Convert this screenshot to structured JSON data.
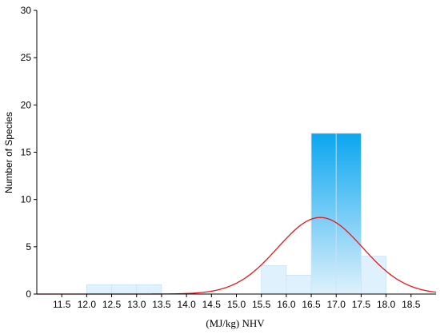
{
  "chart_data": {
    "type": "bar",
    "subtype": "histogram",
    "xlabel": "(MJ/kg) NHV",
    "ylabel": "Number of Species",
    "xlim": [
      11.0,
      19.0
    ],
    "ylim": [
      0,
      30
    ],
    "x_ticks": [
      "11.5",
      "12.0",
      "12.5",
      "13.0",
      "13.5",
      "14.0",
      "14.5",
      "15.0",
      "15.5",
      "16.0",
      "16.5",
      "17.0",
      "17.5",
      "18.0",
      "18.5"
    ],
    "y_ticks": [
      "0",
      "5",
      "10",
      "15",
      "20",
      "25",
      "30"
    ],
    "bins": [
      {
        "start": 12.0,
        "end": 12.5,
        "count": 1
      },
      {
        "start": 12.5,
        "end": 13.0,
        "count": 1
      },
      {
        "start": 13.0,
        "end": 13.5,
        "count": 1
      },
      {
        "start": 15.5,
        "end": 16.0,
        "count": 3
      },
      {
        "start": 16.0,
        "end": 16.5,
        "count": 2
      },
      {
        "start": 16.5,
        "end": 17.0,
        "count": 17
      },
      {
        "start": 17.0,
        "end": 17.5,
        "count": 17
      },
      {
        "start": 17.5,
        "end": 18.0,
        "count": 4
      }
    ],
    "normal_curve": {
      "peak_x": 16.68,
      "peak_y": 8.1,
      "sigma": 0.85,
      "color": "#e8161b"
    },
    "bar_color_top": "#0aa6f0",
    "bar_color_bottom": "#dff1fc",
    "grid": false
  }
}
